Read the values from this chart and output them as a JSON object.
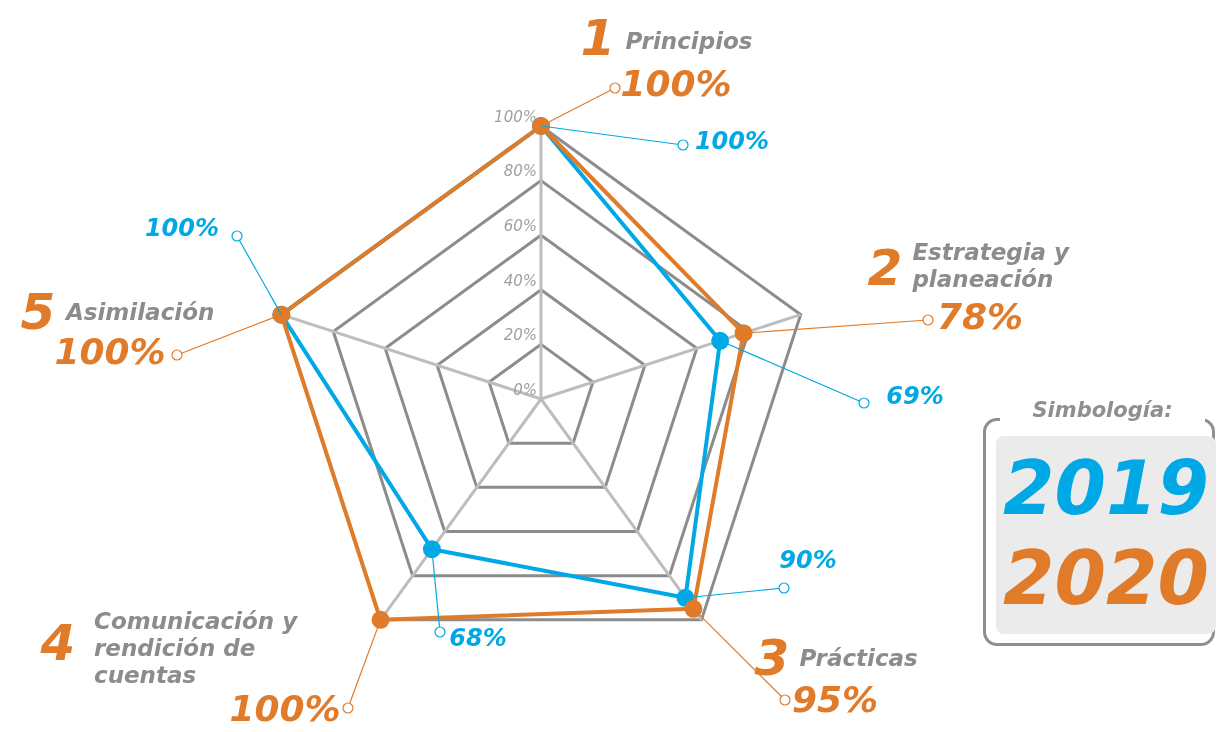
{
  "chart_data": {
    "type": "radar",
    "categories": [
      "1 Principios",
      "2 Estrategia y planeación",
      "3 Prácticas",
      "4 Comunicación y rendición de cuentas",
      "5 Asimilación"
    ],
    "series": [
      {
        "name": "2019",
        "color": "#00a9e6",
        "values": [
          100,
          69,
          90,
          68,
          100
        ],
        "value_labels": [
          "100%",
          "69%",
          "90%",
          "68%",
          "100%"
        ]
      },
      {
        "name": "2020",
        "color": "#e07b2a",
        "values": [
          100,
          78,
          95,
          100,
          100
        ],
        "value_labels": [
          "100%",
          "78%",
          "95%",
          "100%",
          "100%"
        ]
      }
    ],
    "ylim": [
      0,
      100
    ],
    "yticks": [
      {
        "value": 0,
        "label": "0%"
      },
      {
        "value": 20,
        "label": "20%"
      },
      {
        "value": 40,
        "label": "40%"
      },
      {
        "value": 60,
        "label": "60%"
      },
      {
        "value": 80,
        "label": "80%"
      },
      {
        "value": 100,
        "label": "100%"
      }
    ],
    "grid": true,
    "marker": "circle",
    "legend": "right",
    "legend_title": "Simbología:"
  }
}
